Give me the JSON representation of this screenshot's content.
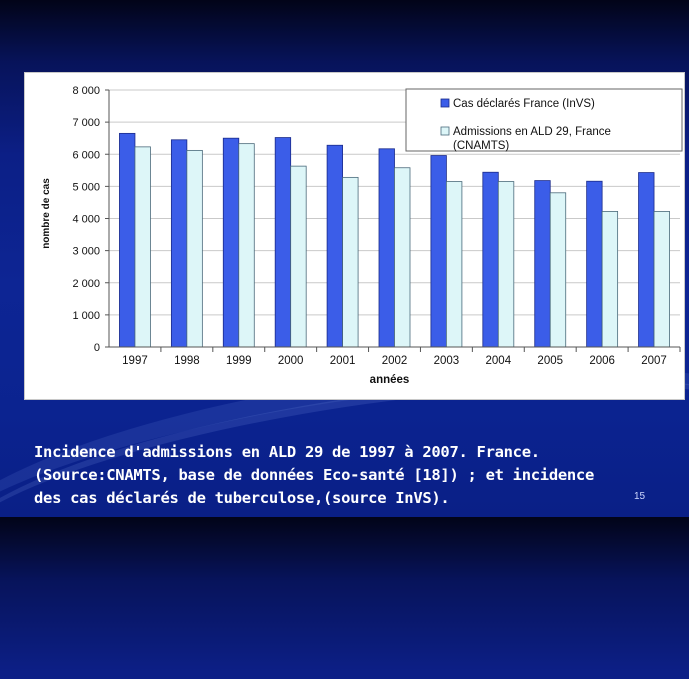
{
  "slide": {
    "caption_lines": [
      "Incidence d'admissions en ALD 29 de 1997 à 2007. France.",
      "(Source:CNAMTS, base de données Eco-santé [18]) ; et incidence",
      "des cas déclarés de tuberculose,(source InVS)."
    ],
    "page_number": "15"
  },
  "chart_data": {
    "type": "bar",
    "categories": [
      "1997",
      "1998",
      "1999",
      "2000",
      "2001",
      "2002",
      "2003",
      "2004",
      "2005",
      "2006",
      "2007"
    ],
    "series": [
      {
        "name": "Cas déclarés France (InVS)",
        "color": "#3b5de8",
        "values": [
          6650,
          6450,
          6500,
          6520,
          6280,
          6170,
          5960,
          5440,
          5180,
          5160,
          5430
        ]
      },
      {
        "name": "Admissions en ALD 29, France (CNAMTS)",
        "color": "#ddf6f8",
        "values": [
          6230,
          6120,
          6330,
          5630,
          5280,
          5580,
          5150,
          5150,
          4800,
          4220,
          4220
        ]
      }
    ],
    "legend_lines": [
      [
        "Cas déclarés France (InVS)"
      ],
      [
        "Admissions en ALD 29, France",
        "(CNAMTS)"
      ]
    ],
    "ylabel": "nombre de cas",
    "xlabel": "années",
    "ylim": [
      0,
      8000
    ],
    "yticks": [
      0,
      1000,
      2000,
      3000,
      4000,
      5000,
      6000,
      7000,
      8000
    ],
    "ytick_labels": [
      "0",
      "1 000",
      "2 000",
      "3 000",
      "4 000",
      "5 000",
      "6 000",
      "7 000",
      "8 000"
    ],
    "grid": true,
    "legend_position": "top-right"
  }
}
